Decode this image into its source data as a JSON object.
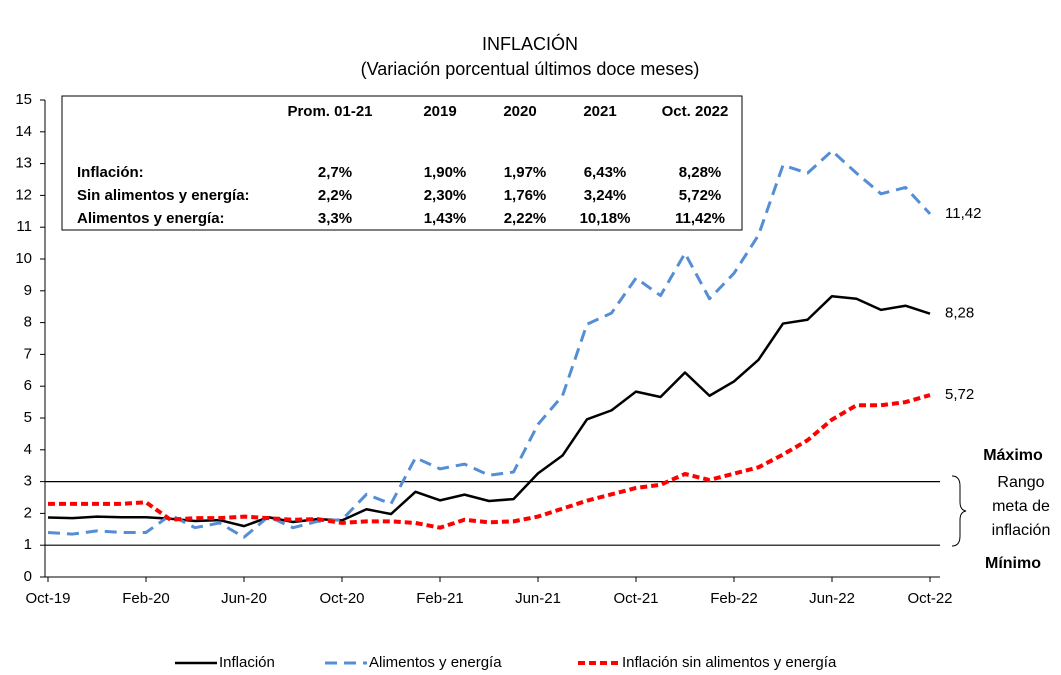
{
  "chart_data": {
    "type": "line",
    "title": "INFLACIÓN",
    "subtitle": "(Variación porcentual últimos doce meses)",
    "categories": [
      "Oct-19",
      null,
      null,
      null,
      "Feb-20",
      null,
      null,
      null,
      "Jun-20",
      null,
      null,
      null,
      "Oct-20",
      null,
      null,
      null,
      "Feb-21",
      null,
      null,
      null,
      "Jun-21",
      null,
      null,
      null,
      "Oct-21",
      null,
      null,
      null,
      "Feb-22",
      null,
      null,
      null,
      "Jun-22",
      null,
      null,
      null,
      "Oct-22"
    ],
    "series": [
      {
        "name": "Inflación",
        "color": "#000000",
        "dash": "solid",
        "end_label": "8,28",
        "values": [
          1.87,
          1.85,
          1.9,
          1.88,
          1.88,
          1.83,
          1.76,
          1.79,
          1.6,
          1.88,
          1.73,
          1.82,
          1.78,
          2.13,
          1.98,
          2.68,
          2.41,
          2.59,
          2.39,
          2.45,
          3.26,
          3.82,
          4.96,
          5.24,
          5.83,
          5.66,
          6.43,
          5.7,
          6.15,
          6.83,
          7.97,
          8.09,
          8.83,
          8.75,
          8.4,
          8.53,
          8.28
        ]
      },
      {
        "name": "Alimentos y energía",
        "color": "#558ed5",
        "dash": "dashed",
        "end_label": "11,42",
        "values": [
          1.4,
          1.35,
          1.45,
          1.4,
          1.4,
          1.95,
          1.55,
          1.7,
          1.25,
          1.9,
          1.55,
          1.75,
          1.8,
          2.6,
          2.3,
          3.75,
          3.4,
          3.55,
          3.2,
          3.3,
          4.8,
          5.7,
          7.95,
          8.3,
          9.4,
          8.85,
          10.18,
          8.75,
          9.55,
          10.75,
          12.95,
          12.7,
          13.4,
          12.7,
          12.05,
          12.25,
          11.42
        ]
      },
      {
        "name": "Inflación sin alimentos y energía",
        "color": "#ff0000",
        "dash": "dotted",
        "end_label": "5,72",
        "values": [
          2.3,
          2.3,
          2.3,
          2.3,
          2.35,
          1.8,
          1.85,
          1.85,
          1.9,
          1.85,
          1.8,
          1.82,
          1.7,
          1.75,
          1.75,
          1.7,
          1.55,
          1.8,
          1.72,
          1.75,
          1.9,
          2.15,
          2.4,
          2.6,
          2.8,
          2.9,
          3.24,
          3.05,
          3.25,
          3.45,
          3.85,
          4.3,
          4.95,
          5.4,
          5.4,
          5.5,
          5.72
        ]
      }
    ],
    "ylim": [
      0,
      15
    ],
    "yticks": [
      0,
      1,
      2,
      3,
      4,
      5,
      6,
      7,
      8,
      9,
      10,
      11,
      12,
      13,
      14,
      15
    ],
    "reference_lines": [
      3,
      1
    ],
    "range_labels": {
      "max": "Máximo",
      "min": "Mínimo",
      "middle": [
        "Rango",
        "meta de",
        "inflación"
      ]
    },
    "legend": "bottom",
    "table": {
      "header": [
        "Prom. 01-21",
        "2019",
        "2020",
        "2021",
        "Oct. 2022"
      ],
      "rows": [
        [
          "Inflación:",
          "2,7%",
          "1,90%",
          "1,97%",
          "6,43%",
          "8,28%"
        ],
        [
          "Sin alimentos y energía:",
          "2,2%",
          "2,30%",
          "1,76%",
          "3,24%",
          "5,72%"
        ],
        [
          "Alimentos y energía:",
          "3,3%",
          "1,43%",
          "2,22%",
          "10,18%",
          "11,42%"
        ]
      ]
    }
  }
}
